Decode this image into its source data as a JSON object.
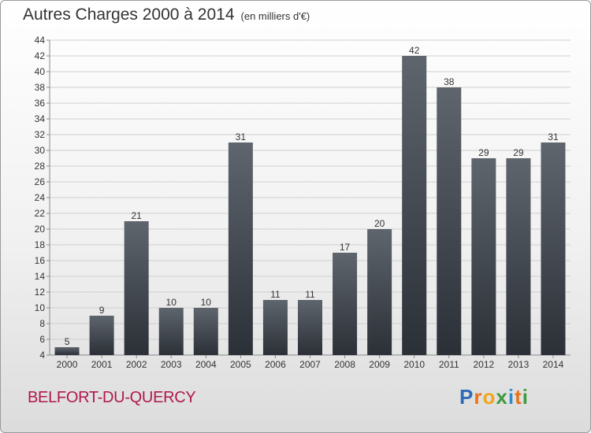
{
  "title": "Autres Charges 2000 à 2014",
  "unit": "(en milliers d'€)",
  "commune": "BELFORT-DU-QUERCY",
  "logo": {
    "text": "Proxiti",
    "letters": [
      {
        "char": "P",
        "color": "#2d6bb5"
      },
      {
        "char": "r",
        "color": "#e8731a"
      },
      {
        "char": "o",
        "color": "#f2a51a"
      },
      {
        "char": "x",
        "color": "#3d9a3d"
      },
      {
        "char": "i",
        "color": "#2d8bc9"
      },
      {
        "char": "t",
        "color": "#e8731a"
      },
      {
        "char": "i",
        "color": "#3d9a3d"
      }
    ]
  },
  "chart_data": {
    "type": "bar",
    "title": "Autres Charges 2000 à 2014",
    "categories": [
      "2000",
      "2001",
      "2002",
      "2003",
      "2004",
      "2005",
      "2006",
      "2007",
      "2008",
      "2009",
      "2010",
      "2011",
      "2012",
      "2013",
      "2014"
    ],
    "values": [
      5,
      9,
      21,
      10,
      10,
      31,
      11,
      11,
      17,
      20,
      42,
      38,
      29,
      29,
      31
    ],
    "ylim": [
      4,
      44
    ],
    "yticks": [
      4,
      6,
      8,
      10,
      12,
      14,
      16,
      18,
      20,
      22,
      24,
      26,
      28,
      30,
      32,
      34,
      36,
      38,
      40,
      42,
      44
    ],
    "grid": true,
    "bar_color": "#4a5058",
    "data_labels": true
  }
}
